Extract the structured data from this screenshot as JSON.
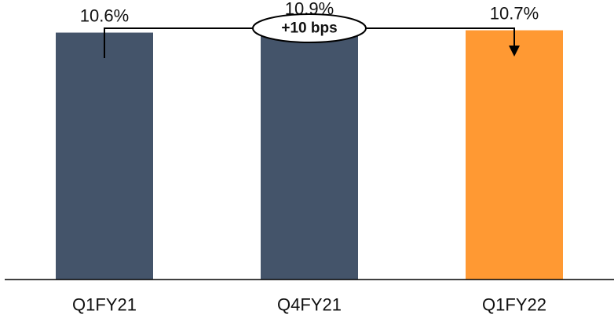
{
  "chart_data": {
    "type": "bar",
    "categories": [
      "Q1FY21",
      "Q4FY21",
      "Q1FY22"
    ],
    "values": [
      10.6,
      10.9,
      10.7
    ],
    "value_labels": [
      "10.6%",
      "10.9%",
      "10.7%"
    ],
    "bar_colors": [
      "#44546A",
      "#44546A",
      "#FF9933"
    ],
    "ylim": [
      0,
      12.0
    ],
    "title": "",
    "xlabel": "",
    "ylabel": "",
    "grid": false,
    "legend": "none",
    "annotation": {
      "label": "+10 bps",
      "from_category": "Q1FY21",
      "to_category": "Q1FY22"
    },
    "axis_color": "#000000"
  }
}
